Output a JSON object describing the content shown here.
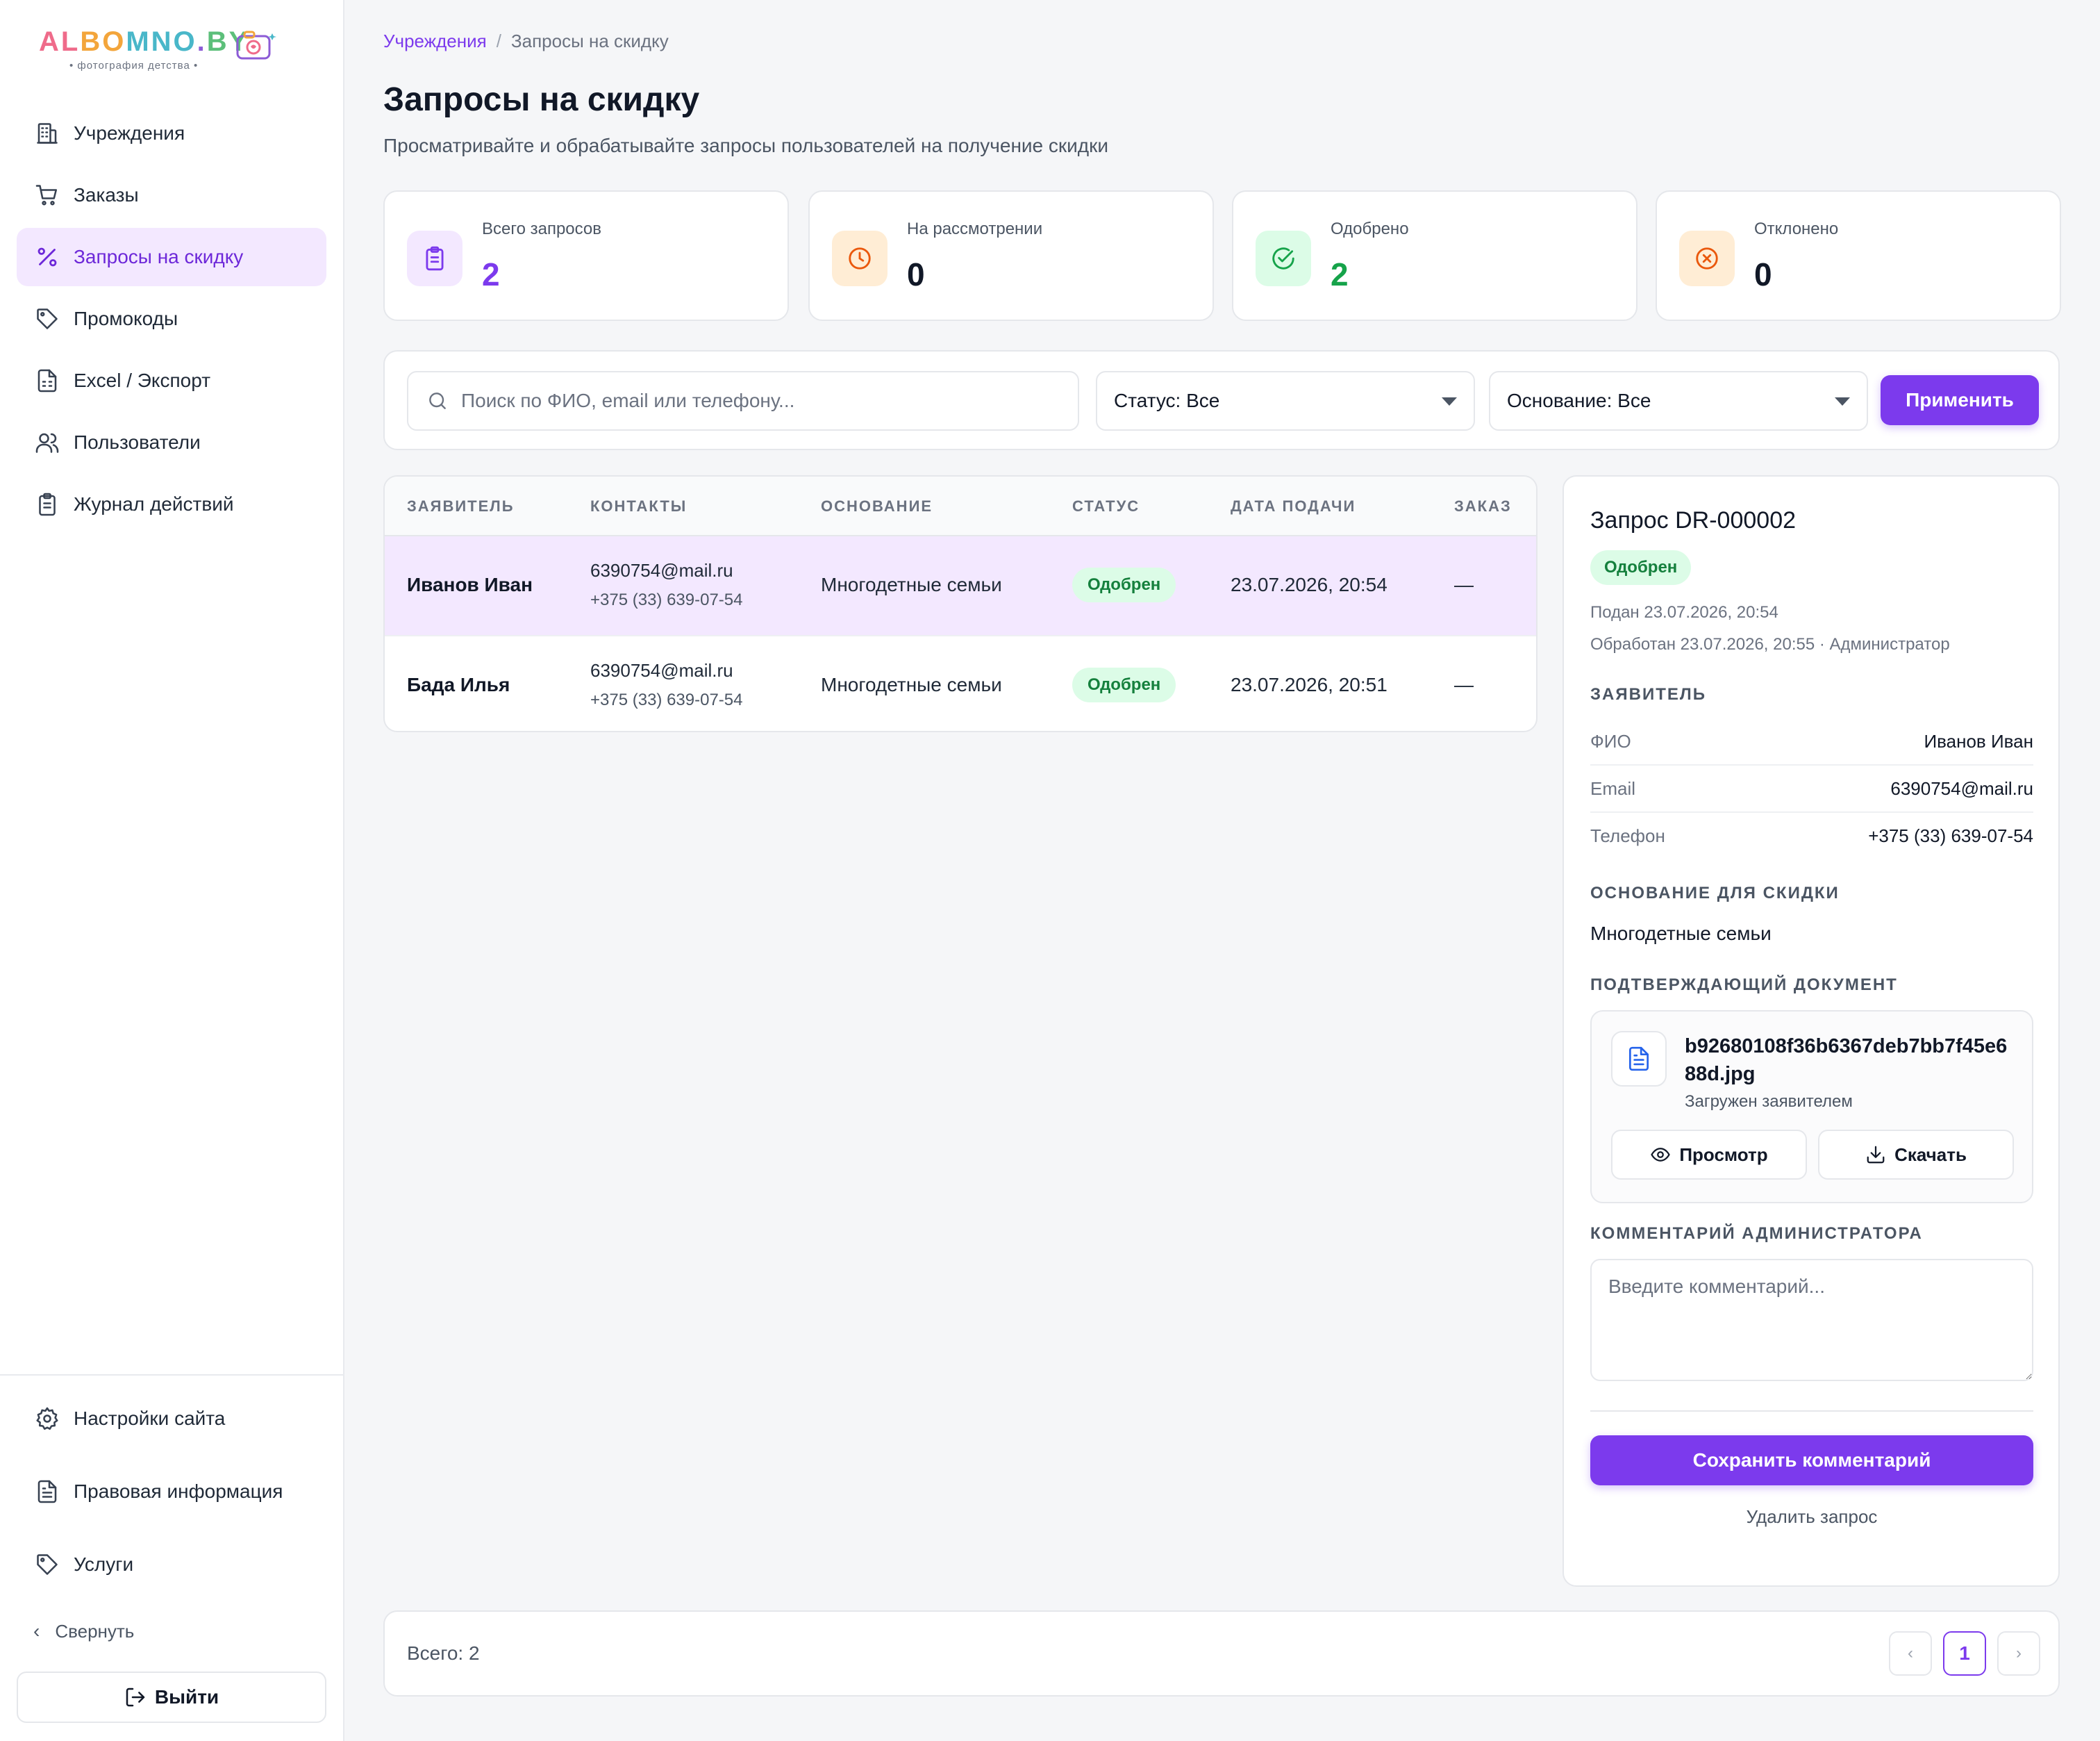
{
  "brand": {
    "logo_parts": [
      "AL",
      "BO",
      "MNO",
      ".",
      "BY"
    ],
    "logo_subtitle": "• фотография детства •",
    "accent": "#7c3aed"
  },
  "sidebar": {
    "items": [
      {
        "label": "Учреждения",
        "icon": "building-icon",
        "active": false
      },
      {
        "label": "Заказы",
        "icon": "cart-icon",
        "active": false
      },
      {
        "label": "Запросы на скидку",
        "icon": "percent-icon",
        "active": true
      },
      {
        "label": "Промокоды",
        "icon": "tag-icon",
        "active": false
      },
      {
        "label": "Excel / Экспорт",
        "icon": "spreadsheet-icon",
        "active": false
      },
      {
        "label": "Пользователи",
        "icon": "users-icon",
        "active": false
      },
      {
        "label": "Журнал действий",
        "icon": "clipboard-icon",
        "active": false
      }
    ],
    "bottom_items": [
      {
        "label": "Настройки сайта",
        "icon": "gear-icon"
      },
      {
        "label": "Правовая информация",
        "icon": "document-icon"
      },
      {
        "label": "Услуги",
        "icon": "tag-icon"
      }
    ],
    "collapse_label": "Свернуть",
    "logout_label": "Выйти"
  },
  "breadcrumb": {
    "parent": "Учреждения",
    "separator": "/",
    "current": "Запросы на скидку"
  },
  "page": {
    "title": "Запросы на скидку",
    "subtitle": "Просматривайте и обрабатывайте запросы пользователей на получение скидки"
  },
  "stats": [
    {
      "label": "Всего запросов",
      "value": "2",
      "icon": "clipboard-icon",
      "color": "#7c3aed",
      "bg": "#f3e8ff"
    },
    {
      "label": "На рассмотрении",
      "value": "0",
      "icon": "clock-icon",
      "color": "#111827",
      "bg": "#ffedd5"
    },
    {
      "label": "Одобрено",
      "value": "2",
      "icon": "check-circle-icon",
      "color": "#16a34a",
      "bg": "#dcfce7"
    },
    {
      "label": "Отклонено",
      "value": "0",
      "icon": "x-circle-icon",
      "color": "#111827",
      "bg": "#ffedd5"
    }
  ],
  "filters": {
    "search_placeholder": "Поиск по ФИО, email или телефону...",
    "status_value": "Статус: Все",
    "basis_value": "Основание: Все",
    "apply_label": "Применить"
  },
  "table": {
    "columns": [
      "ЗАЯВИТЕЛЬ",
      "КОНТАКТЫ",
      "ОСНОВАНИЕ",
      "СТАТУС",
      "ДАТА ПОДАЧИ",
      "ЗАКАЗ"
    ],
    "rows": [
      {
        "name": "Иванов Иван",
        "email": "6390754@mail.ru",
        "phone": "+375 (33) 639-07-54",
        "basis": "Многодетные семьи",
        "status": "Одобрен",
        "date": "23.07.2026, 20:54",
        "order": "—",
        "selected": true
      },
      {
        "name": "Бада Илья",
        "email": "6390754@mail.ru",
        "phone": "+375 (33) 639-07-54",
        "basis": "Многодетные семьи",
        "status": "Одобрен",
        "date": "23.07.2026, 20:51",
        "order": "—",
        "selected": false
      }
    ]
  },
  "detail": {
    "title": "Запрос DR-000002",
    "status": "Одобрен",
    "submitted": "Подан 23.07.2026, 20:54",
    "processed": "Обработан 23.07.2026, 20:55 · Администратор",
    "applicant_heading": "ЗАЯВИТЕЛЬ",
    "fields": [
      {
        "key": "ФИО",
        "value": "Иванов Иван"
      },
      {
        "key": "Email",
        "value": "6390754@mail.ru"
      },
      {
        "key": "Телефон",
        "value": "+375 (33) 639-07-54"
      }
    ],
    "basis_heading": "ОСНОВАНИЕ ДЛЯ СКИДКИ",
    "basis": "Многодетные семьи",
    "doc_heading": "ПОДТВЕРЖДАЮЩИЙ ДОКУМЕНТ",
    "doc_name": "b92680108f36b6367deb7bb7f45e688d.jpg",
    "doc_sub": "Загружен заявителем",
    "view_label": "Просмотр",
    "download_label": "Скачать",
    "comment_heading": "КОММЕНТАРИЙ АДМИНИСТРАТОРА",
    "comment_placeholder": "Введите комментарий...",
    "save_label": "Сохранить комментарий",
    "delete_label": "Удалить запрос"
  },
  "footer": {
    "total": "Всего: 2",
    "prev": "‹",
    "page": "1",
    "next": "›"
  }
}
